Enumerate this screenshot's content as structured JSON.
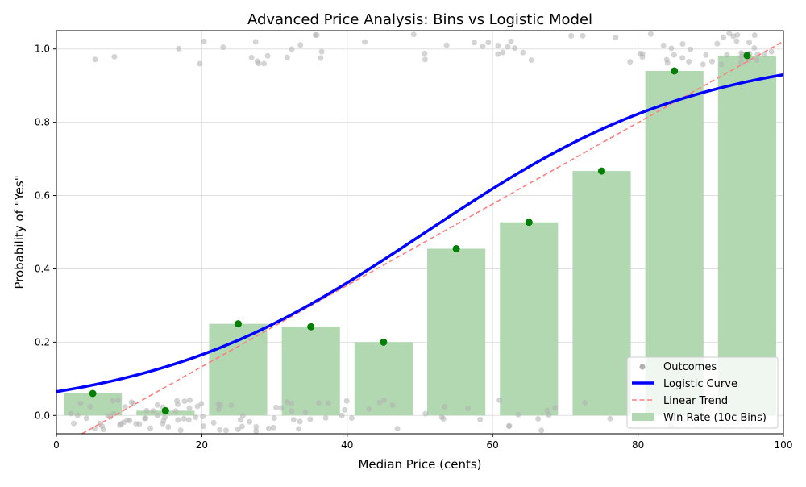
{
  "chart_data": {
    "type": "bar",
    "title": "Advanced Price Analysis: Bins vs Logistic Model",
    "xlabel": "Median Price (cents)",
    "ylabel": "Probability of \"Yes\"",
    "xlim": [
      0,
      100
    ],
    "ylim": [
      -0.05,
      1.05
    ],
    "grid": true,
    "legend_position": "lower-right",
    "x_ticks": [
      "0",
      "20",
      "40",
      "60",
      "80",
      "100"
    ],
    "y_ticks": [
      "0.0",
      "0.2",
      "0.4",
      "0.6",
      "0.8",
      "1.0"
    ],
    "bins": {
      "name": "Win Rate (10c Bins)",
      "centers": [
        5,
        15,
        25,
        35,
        45,
        55,
        65,
        75,
        85,
        95
      ],
      "values": [
        0.06,
        0.013,
        0.25,
        0.242,
        0.2,
        0.455,
        0.527,
        0.667,
        0.94,
        0.982
      ],
      "color": "#b2d8b2",
      "marker_color": "#008000"
    },
    "logistic": {
      "name": "Logistic Curve",
      "intercept": -2.666,
      "slope": 0.0525,
      "color": "#0000ff"
    },
    "linear": {
      "name": "Linear Trend",
      "intercept": -0.089,
      "slope": 0.0111,
      "color": "#ff7f7f"
    },
    "outcomes": {
      "name": "Outcomes",
      "color": "#b0b0b0",
      "no_x": [
        2,
        3,
        3,
        4,
        4,
        5,
        5,
        6,
        6,
        7,
        7,
        7,
        8,
        8,
        8,
        9,
        9,
        9,
        10,
        10,
        10,
        11,
        11,
        11,
        12,
        12,
        12,
        13,
        13,
        13,
        14,
        14,
        14,
        15,
        15,
        15,
        15,
        16,
        16,
        16,
        17,
        17,
        18,
        18,
        18,
        19,
        19,
        19,
        20,
        20,
        20,
        21,
        21,
        22,
        22,
        23,
        23,
        24,
        24,
        25,
        25,
        26,
        26,
        27,
        27,
        28,
        29,
        30,
        30,
        31,
        31,
        32,
        32,
        33,
        33,
        34,
        34,
        35,
        35,
        36,
        37,
        38,
        39,
        39,
        40,
        40,
        43,
        44,
        45,
        46,
        47,
        50,
        53,
        53,
        53,
        56,
        59,
        61,
        62,
        62,
        64,
        67,
        67,
        67,
        68,
        69,
        73,
        76,
        84,
        94,
        95
      ],
      "yes_x": [
        6,
        8,
        17,
        20,
        21,
        23,
        27,
        27,
        28,
        28,
        28,
        29,
        32,
        32,
        34,
        35,
        36,
        36,
        37,
        43,
        49,
        51,
        51,
        53,
        57,
        59,
        60,
        60,
        61,
        62,
        62,
        62,
        63,
        64,
        66,
        71,
        72,
        77,
        79,
        80,
        81,
        81,
        82,
        83,
        84,
        84,
        85,
        85,
        86,
        86,
        87,
        88,
        89,
        90,
        90,
        91,
        91,
        92,
        92,
        93,
        93,
        93,
        94,
        94,
        94,
        95,
        95,
        95,
        95,
        96,
        96,
        96,
        96,
        97,
        97,
        98,
        99
      ]
    }
  }
}
